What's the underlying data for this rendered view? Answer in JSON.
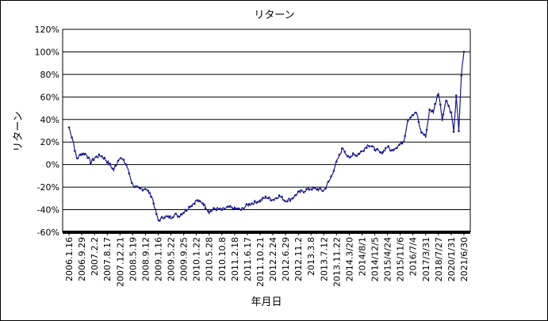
{
  "chart_data": {
    "type": "line",
    "title": "リターン",
    "xlabel": "年月日",
    "ylabel": "リターン",
    "ylim": [
      -60,
      120
    ],
    "yticks": [
      -60,
      -40,
      -20,
      0,
      20,
      40,
      60,
      80,
      100,
      120
    ],
    "ytick_labels": [
      "-60%",
      "-40%",
      "-20%",
      "0%",
      "20%",
      "40%",
      "60%",
      "80%",
      "100%",
      "120%"
    ],
    "x_tick_labels": [
      "2006.1.16",
      "2006.9.29",
      "2007.2.2",
      "2007.8.17",
      "2007.12.21",
      "2008.5.19",
      "2008.9.12",
      "2009.1.16",
      "2009.5.22",
      "2009.9.25",
      "2010.1.22",
      "2010.5.28",
      "2010.10.8",
      "2011.2.18",
      "2011.6.17",
      "2011.10.21",
      "2012.2.24",
      "2012.6.29",
      "2012.11.2",
      "2013.3.8",
      "2013.7.12",
      "2013.11.22",
      "2014.3/20",
      "2014/8/1",
      "2014/12/5",
      "2015/4/24",
      "2015/11/6",
      "2016/7/4",
      "2017/3/31",
      "2018/7/27",
      "2020/1/31",
      "2021/6/30"
    ],
    "grid": "horizontal",
    "legend": "none",
    "series": [
      {
        "color": "#1a1a8c",
        "x": [
          0,
          0.3,
          0.6,
          1,
          1.4,
          1.7,
          2,
          2.5,
          3,
          3.5,
          4,
          4.5,
          5,
          5.5,
          6,
          6.5,
          7,
          7.5,
          8,
          8.3,
          8.6,
          9,
          9.5,
          10,
          10.5,
          11,
          11.5,
          12,
          12.5,
          13,
          13.5,
          14,
          14.5,
          15,
          15.5,
          16,
          16.5,
          17,
          17.5,
          18,
          18.5,
          19,
          19.5,
          20,
          20.5,
          21,
          21.5,
          22,
          22.3,
          22.6,
          23,
          23.5,
          24,
          24.5,
          25,
          25.3,
          25.6,
          26,
          26.3,
          26.6,
          27,
          27.3,
          27.6,
          28,
          28.3,
          28.6,
          29,
          29.3,
          29.6,
          30,
          30.2,
          30.4,
          30.6,
          30.8,
          31
        ],
        "y": [
          33,
          22,
          5,
          10,
          9,
          2,
          6,
          8,
          3,
          -5,
          7,
          0,
          -18,
          -22,
          -21,
          -28,
          -50,
          -46,
          -47,
          -44,
          -46,
          -42,
          -37,
          -32,
          -34,
          -42,
          -39,
          -40,
          -38,
          -39,
          -40,
          -36,
          -34,
          -32,
          -29,
          -31,
          -28,
          -32,
          -30,
          -25,
          -23,
          -21,
          -22,
          -23,
          -13,
          2,
          15,
          5,
          10,
          8,
          12,
          18,
          14,
          10,
          16,
          12,
          15,
          18,
          22,
          40,
          44,
          46,
          30,
          25,
          48,
          47,
          65,
          40,
          58,
          45,
          30,
          60,
          30,
          80,
          100
        ],
        "start_label": "2006.1.16"
      }
    ]
  }
}
